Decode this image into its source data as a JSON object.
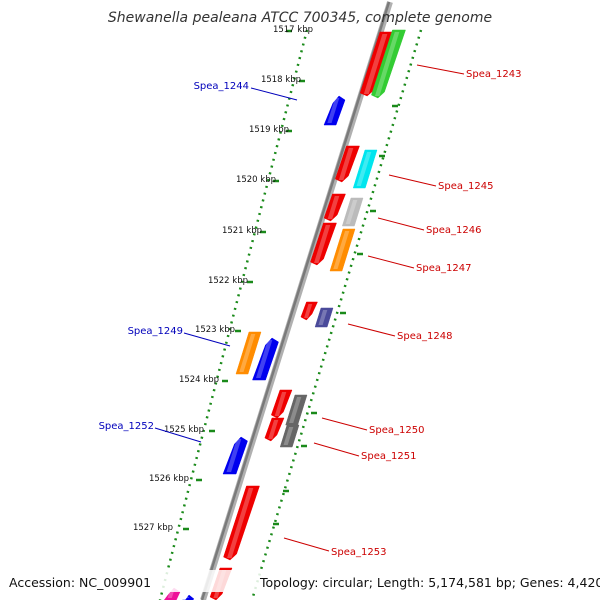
{
  "title": "Shewanella pealeana ATCC 700345, complete genome",
  "footer": {
    "accession": "Accession: NC_009901",
    "summary": "Topology: circular; Length: 5,174,581 bp; Genes: 4,420"
  },
  "colors": {
    "backbone": "#8a8a8a",
    "ticks": "#1a8a1a",
    "plus_label": "#cc0000",
    "minus_label": "#0000bb"
  },
  "ticks": [
    {
      "kbp": 1517,
      "label": "1517 kbp"
    },
    {
      "kbp": 1518,
      "label": "1518 kbp"
    },
    {
      "kbp": 1519,
      "label": "1519 kbp"
    },
    {
      "kbp": 1520,
      "label": "1520 kbp"
    },
    {
      "kbp": 1521,
      "label": "1521 kbp"
    },
    {
      "kbp": 1522,
      "label": "1522 kbp"
    },
    {
      "kbp": 1523,
      "label": "1523 kbp"
    },
    {
      "kbp": 1524,
      "label": "1524 kbp"
    },
    {
      "kbp": 1525,
      "label": "1525 kbp"
    },
    {
      "kbp": 1526,
      "label": "1526 kbp"
    },
    {
      "kbp": 1527,
      "label": "1527 kbp"
    }
  ],
  "gene_labels": [
    {
      "name": "Spea_1243",
      "strand": "plus"
    },
    {
      "name": "Spea_1244",
      "strand": "minus"
    },
    {
      "name": "Spea_1245",
      "strand": "plus"
    },
    {
      "name": "Spea_1246",
      "strand": "plus"
    },
    {
      "name": "Spea_1247",
      "strand": "plus"
    },
    {
      "name": "Spea_1248",
      "strand": "plus"
    },
    {
      "name": "Spea_1249",
      "strand": "minus"
    },
    {
      "name": "Spea_1250",
      "strand": "plus"
    },
    {
      "name": "Spea_1251",
      "strand": "plus"
    },
    {
      "name": "Spea_1252",
      "strand": "minus"
    },
    {
      "name": "Spea_1253",
      "strand": "plus"
    }
  ]
}
